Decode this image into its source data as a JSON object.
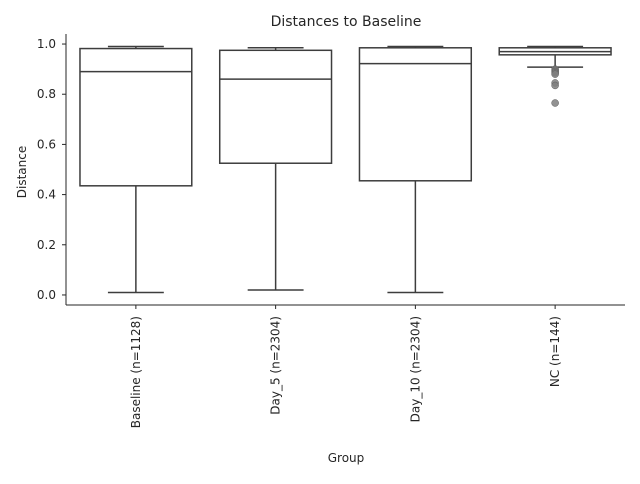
{
  "chart_data": {
    "type": "box",
    "title": "Distances to Baseline",
    "xlabel": "Group",
    "ylabel": "Distance",
    "ylim": [
      -0.04,
      1.04
    ],
    "yticks": [
      0.0,
      0.2,
      0.4,
      0.6,
      0.8,
      1.0
    ],
    "ytick_labels": [
      "0.0",
      "0.2",
      "0.4",
      "0.6",
      "0.8",
      "1.0"
    ],
    "grid": false,
    "colors": {
      "box_edge": "#3d3d3d",
      "text": "#262626",
      "outlier": "#7f7f7f",
      "background": "#ffffff"
    },
    "categories": [
      "Baseline (n=1128)",
      "Day_5 (n=2304)",
      "Day_10 (n=2304)",
      "NC (n=144)"
    ],
    "boxes": [
      {
        "category": "Baseline (n=1128)",
        "whisker_low": 0.01,
        "q1": 0.435,
        "median": 0.89,
        "q3": 0.982,
        "whisker_high": 0.99,
        "outliers": []
      },
      {
        "category": "Day_5 (n=2304)",
        "whisker_low": 0.02,
        "q1": 0.525,
        "median": 0.86,
        "q3": 0.975,
        "whisker_high": 0.985,
        "outliers": []
      },
      {
        "category": "Day_10 (n=2304)",
        "whisker_low": 0.01,
        "q1": 0.455,
        "median": 0.922,
        "q3": 0.985,
        "whisker_high": 0.99,
        "outliers": []
      },
      {
        "category": "NC (n=144)",
        "whisker_low": 0.908,
        "q1": 0.957,
        "median": 0.97,
        "q3": 0.985,
        "whisker_high": 0.99,
        "outliers": [
          0.9,
          0.895,
          0.89,
          0.885,
          0.88,
          0.845,
          0.835,
          0.765
        ]
      }
    ]
  }
}
